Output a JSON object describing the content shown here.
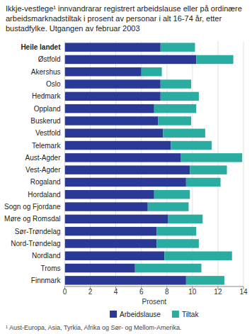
{
  "chart_data": {
    "type": "bar",
    "orientation": "horizontal",
    "stacked": true,
    "title": "Ikkje-vestlege¹ innvandrarar registrert arbeidslause eller på ordinære arbeidsmarknadstiltak i prosent av personar i alt 16-74 år, etter bustadfylke. Utgangen av februar 2003",
    "categories": [
      "Heile landet",
      "Østfold",
      "Akershus",
      "Oslo",
      "Hedmark",
      "Oppland",
      "Buskerud",
      "Vestfold",
      "Telemark",
      "Aust-Agder",
      "Vest-Agder",
      "Rogaland",
      "Hordaland",
      "Sogn og Fjordane",
      "Møre og Romsdal",
      "Sør-Trøndelag",
      "Nord-Trøndelag",
      "Nordland",
      "Troms",
      "Finnmark"
    ],
    "series": [
      {
        "name": "Arbeidslause",
        "color": "#2a3896",
        "values": [
          7.5,
          10.3,
          6.0,
          7.5,
          7.5,
          7.0,
          7.3,
          7.7,
          8.3,
          9.1,
          9.8,
          9.5,
          7.0,
          6.5,
          8.1,
          7.2,
          7.2,
          7.8,
          5.5,
          9.5
        ]
      },
      {
        "name": "Tiltak",
        "color": "#2aada0",
        "values": [
          2.7,
          2.9,
          1.6,
          2.4,
          3.0,
          3.3,
          2.6,
          3.3,
          3.2,
          4.8,
          2.9,
          2.7,
          2.8,
          3.2,
          2.7,
          3.1,
          3.3,
          5.3,
          5.2,
          3.0
        ]
      }
    ],
    "xlabel": "Prosent",
    "xlim": [
      0,
      14
    ],
    "xticks": [
      0,
      2,
      4,
      6,
      8,
      10,
      12,
      14
    ],
    "grid": true,
    "legend": "bottom",
    "footnote": "¹ Aust-Europa, Asia, Tyrkia, Afrika og Sør- og Mellom-Amerika."
  }
}
